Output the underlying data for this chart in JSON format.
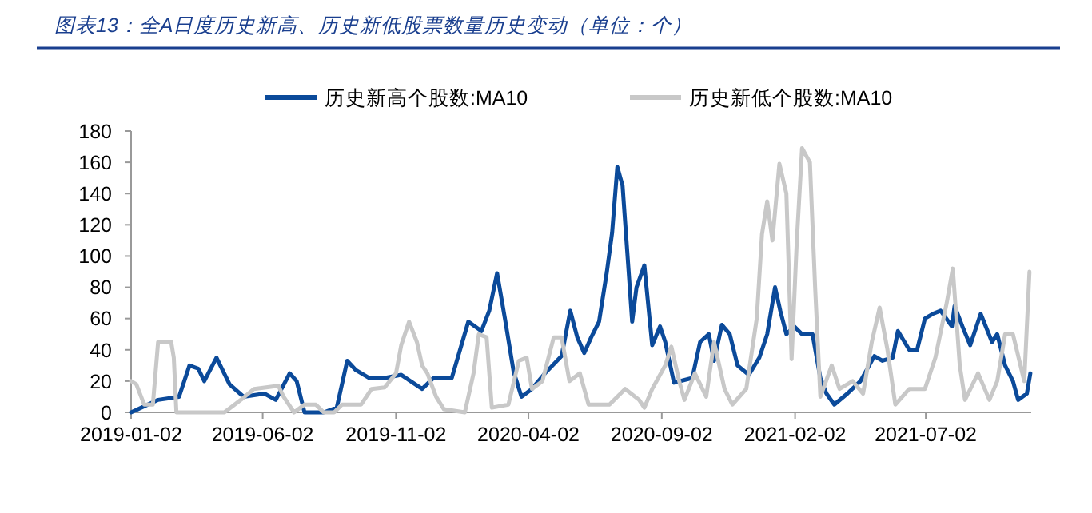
{
  "chart_data": {
    "type": "line",
    "title": "图表13：全A日度历史新高、历史新低股票数量历史变动（单位：个）",
    "xlim": [
      "2019-01-02",
      "2021-10-31"
    ],
    "xticks": [
      "2019-01-02",
      "2019-06-02",
      "2019-11-02",
      "2020-04-02",
      "2020-09-02",
      "2021-02-02",
      "2021-07-02"
    ],
    "ylim": [
      0,
      180
    ],
    "yticks": [
      0,
      20,
      40,
      60,
      80,
      100,
      120,
      140,
      160,
      180
    ],
    "legend": "top",
    "grid": false,
    "marker": "none",
    "line_style": "solid",
    "series": [
      {
        "name": "历史新高个股数:MA10",
        "color": "#0b4a9a",
        "x": [
          "2019-01-02",
          "2019-02-02",
          "2019-02-26",
          "2019-03-10",
          "2019-03-20",
          "2019-03-27",
          "2019-04-10",
          "2019-04-25",
          "2019-05-11",
          "2019-06-04",
          "2019-06-17",
          "2019-07-03",
          "2019-07-11",
          "2019-07-20",
          "2019-08-11",
          "2019-08-26",
          "2019-09-07",
          "2019-09-17",
          "2019-10-02",
          "2019-10-20",
          "2019-11-08",
          "2019-12-02",
          "2019-12-15",
          "2020-01-05",
          "2020-01-24",
          "2020-02-08",
          "2020-02-17",
          "2020-02-26",
          "2020-03-06",
          "2020-03-16",
          "2020-03-25",
          "2020-04-06",
          "2020-04-21",
          "2020-05-10",
          "2020-05-20",
          "2020-05-28",
          "2020-06-05",
          "2020-06-13",
          "2020-06-22",
          "2020-07-01",
          "2020-07-07",
          "2020-07-13",
          "2020-07-19",
          "2020-07-26",
          "2020-07-30",
          "2020-08-04",
          "2020-08-13",
          "2020-08-22",
          "2020-08-31",
          "2020-09-06",
          "2020-09-16",
          "2020-10-07",
          "2020-10-16",
          "2020-10-26",
          "2020-11-01",
          "2020-11-10",
          "2020-11-19",
          "2020-11-28",
          "2020-12-11",
          "2020-12-23",
          "2021-01-01",
          "2021-01-10",
          "2021-01-16",
          "2021-01-23",
          "2021-02-01",
          "2021-02-10",
          "2021-02-22",
          "2021-03-03",
          "2021-03-10",
          "2021-03-19",
          "2021-04-03",
          "2021-04-18",
          "2021-05-04",
          "2021-05-13",
          "2021-05-25",
          "2021-05-31",
          "2021-06-13",
          "2021-06-22",
          "2021-07-01",
          "2021-07-10",
          "2021-07-19",
          "2021-08-01",
          "2021-08-04",
          "2021-08-13",
          "2021-08-22",
          "2021-09-03",
          "2021-09-16",
          "2021-09-22",
          "2021-10-01",
          "2021-10-10",
          "2021-10-16",
          "2021-10-26",
          "2021-10-30"
        ],
        "values": [
          0,
          8,
          10,
          30,
          28,
          20,
          35,
          18,
          10,
          12,
          8,
          25,
          20,
          0,
          0,
          3,
          33,
          27,
          22,
          22,
          24,
          15,
          22,
          22,
          58,
          52,
          65,
          89,
          60,
          26,
          10,
          15,
          25,
          36,
          65,
          48,
          38,
          48,
          58,
          90,
          115,
          157,
          145,
          90,
          58,
          80,
          94,
          43,
          55,
          45,
          19,
          22,
          45,
          50,
          33,
          56,
          50,
          30,
          24,
          35,
          50,
          80,
          65,
          50,
          55,
          50,
          50,
          22,
          12,
          5,
          12,
          20,
          36,
          33,
          35,
          52,
          40,
          40,
          60,
          63,
          65,
          55,
          68,
          55,
          43,
          63,
          45,
          50,
          30,
          20,
          8,
          12,
          25
        ]
      },
      {
        "name": "历史新低个股数:MA10",
        "color": "#c8c8c8",
        "x": [
          "2019-01-02",
          "2019-01-08",
          "2019-01-17",
          "2019-01-27",
          "2019-02-02",
          "2019-02-17",
          "2019-02-20",
          "2019-02-23",
          "2019-04-19",
          "2019-05-08",
          "2019-05-23",
          "2019-06-20",
          "2019-06-26",
          "2019-07-08",
          "2019-07-20",
          "2019-08-02",
          "2019-08-11",
          "2019-08-23",
          "2019-09-01",
          "2019-09-23",
          "2019-10-05",
          "2019-10-20",
          "2019-11-02",
          "2019-11-08",
          "2019-11-17",
          "2019-11-26",
          "2019-12-02",
          "2019-12-08",
          "2019-12-18",
          "2019-12-27",
          "2020-01-20",
          "2020-01-30",
          "2020-02-05",
          "2020-02-14",
          "2020-02-20",
          "2020-03-10",
          "2020-03-22",
          "2020-03-31",
          "2020-04-06",
          "2020-04-18",
          "2020-05-01",
          "2020-05-10",
          "2020-05-19",
          "2020-05-31",
          "2020-06-10",
          "2020-07-04",
          "2020-07-22",
          "2020-08-07",
          "2020-08-13",
          "2020-08-22",
          "2020-09-06",
          "2020-09-13",
          "2020-09-22",
          "2020-09-28",
          "2020-10-10",
          "2020-10-23",
          "2020-11-01",
          "2020-11-13",
          "2020-11-22",
          "2020-12-08",
          "2020-12-20",
          "2020-12-26",
          "2021-01-01",
          "2021-01-07",
          "2021-01-15",
          "2021-01-23",
          "2021-01-29",
          "2021-02-04",
          "2021-02-10",
          "2021-02-19",
          "2021-02-25",
          "2021-03-03",
          "2021-03-16",
          "2021-03-25",
          "2021-04-09",
          "2021-04-21",
          "2021-05-01",
          "2021-05-10",
          "2021-05-19",
          "2021-05-28",
          "2021-06-13",
          "2021-07-01",
          "2021-07-13",
          "2021-07-26",
          "2021-08-02",
          "2021-08-10",
          "2021-08-16",
          "2021-08-31",
          "2021-09-13",
          "2021-09-22",
          "2021-10-01",
          "2021-10-10",
          "2021-10-23",
          "2021-10-29"
        ],
        "values": [
          20,
          18,
          5,
          5,
          45,
          45,
          35,
          0,
          0,
          8,
          15,
          17,
          10,
          0,
          5,
          5,
          0,
          0,
          5,
          5,
          15,
          16,
          25,
          43,
          58,
          45,
          30,
          25,
          10,
          2,
          0,
          25,
          50,
          48,
          3,
          5,
          33,
          35,
          15,
          20,
          48,
          48,
          20,
          25,
          5,
          5,
          15,
          8,
          3,
          15,
          30,
          42,
          20,
          8,
          25,
          10,
          45,
          15,
          5,
          15,
          60,
          114,
          135,
          110,
          159,
          140,
          34,
          110,
          169,
          160,
          80,
          10,
          30,
          15,
          20,
          12,
          45,
          67,
          40,
          5,
          15,
          15,
          35,
          70,
          92,
          30,
          8,
          25,
          8,
          20,
          50,
          50,
          20,
          90
        ]
      }
    ]
  }
}
